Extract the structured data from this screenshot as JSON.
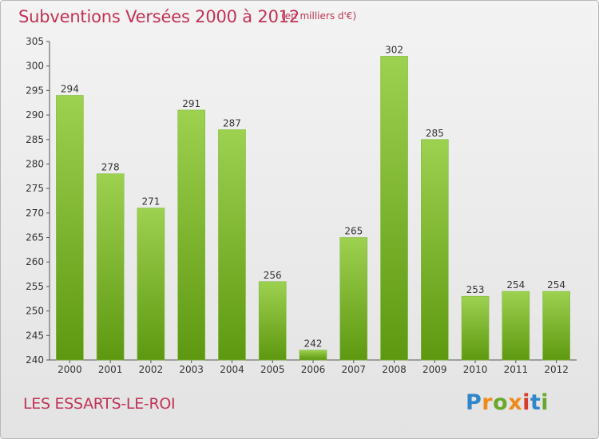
{
  "header": {
    "title": "Subventions Versées 2000 à 2012",
    "subtitle": "(en milliers d'€)"
  },
  "footer": {
    "place": "LES ESSARTS-LE-ROI",
    "brand_logo": {
      "text": "Proxiti",
      "letter_colors": [
        "#2f86c9",
        "#f08a1a",
        "#6aa82d",
        "#f08a1a",
        "#d93a2b",
        "#2f86c9",
        "#6aa82d"
      ]
    }
  },
  "colors": {
    "title": "#c03256",
    "bar_light": "#9dd150",
    "bar_dark": "#5e9810",
    "axis": "#555555",
    "tick_text": "#333333"
  },
  "chart_data": {
    "type": "bar",
    "categories": [
      "2000",
      "2001",
      "2002",
      "2003",
      "2004",
      "2005",
      "2006",
      "2007",
      "2008",
      "2009",
      "2010",
      "2011",
      "2012"
    ],
    "values": [
      294,
      278,
      271,
      291,
      287,
      256,
      242,
      265,
      302,
      285,
      253,
      254,
      254
    ],
    "ylim": [
      240,
      305
    ],
    "yticks": [
      240,
      245,
      250,
      255,
      260,
      265,
      270,
      275,
      280,
      285,
      290,
      295,
      300,
      305
    ],
    "grid": false,
    "data_labels": true
  }
}
